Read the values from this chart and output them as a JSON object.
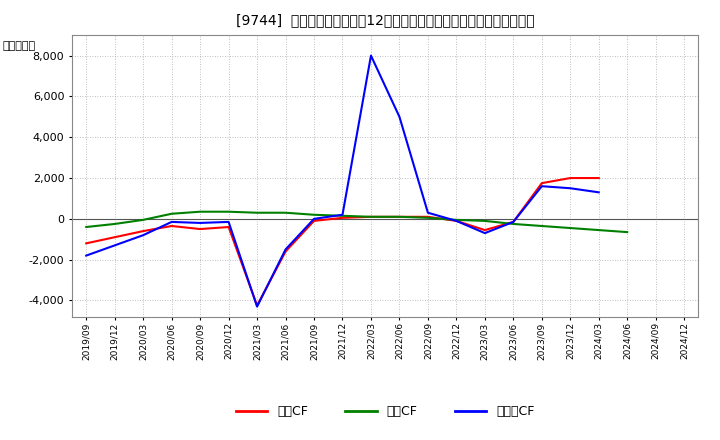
{
  "title": "[9744]  キャッシュフローの12か月移動合計の対前年同期増減額の推移",
  "ylabel": "（百万円）",
  "background_color": "#ffffff",
  "plot_bg_color": "#ffffff",
  "grid_color": "#aaaaaa",
  "ylim": [
    -4800,
    9000
  ],
  "yticks": [
    -4000,
    -2000,
    0,
    2000,
    4000,
    6000,
    8000
  ],
  "x_labels": [
    "2019/09",
    "2019/12",
    "2020/03",
    "2020/06",
    "2020/09",
    "2020/12",
    "2021/03",
    "2021/06",
    "2021/09",
    "2021/12",
    "2022/03",
    "2022/06",
    "2022/09",
    "2022/12",
    "2023/03",
    "2023/06",
    "2023/09",
    "2023/12",
    "2024/03",
    "2024/06",
    "2024/09",
    "2024/12"
  ],
  "series": {
    "営業CF": {
      "color": "#ff0000",
      "values": [
        -1200,
        -900,
        -600,
        -350,
        -500,
        -400,
        -4250,
        -1600,
        -100,
        50,
        100,
        100,
        100,
        -100,
        -550,
        -150,
        1750,
        2000,
        2000,
        null,
        null,
        null
      ]
    },
    "投資CF": {
      "color": "#008000",
      "values": [
        -400,
        -250,
        -50,
        250,
        350,
        350,
        300,
        300,
        200,
        150,
        100,
        100,
        50,
        -50,
        -100,
        -250,
        -350,
        -450,
        -550,
        -650,
        null,
        null
      ]
    },
    "フリーCF": {
      "color": "#0000ff",
      "values": [
        -1800,
        -1300,
        -800,
        -150,
        -200,
        -150,
        -4300,
        -1500,
        0,
        200,
        8000,
        5000,
        300,
        -100,
        -700,
        -150,
        1600,
        1500,
        1300,
        null,
        null,
        null
      ]
    }
  },
  "legend_labels": [
    "営業CF",
    "投資CF",
    "フリーCF"
  ],
  "legend_colors": [
    "#ff0000",
    "#008000",
    "#0000ff"
  ]
}
